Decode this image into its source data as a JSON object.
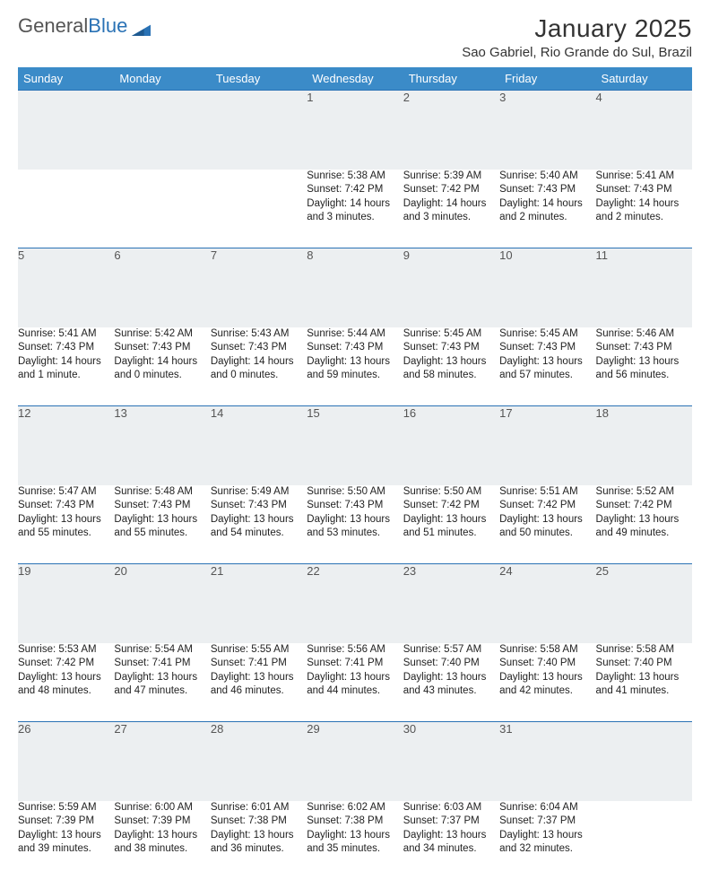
{
  "brand": {
    "part1": "General",
    "part2": "Blue"
  },
  "title": "January 2025",
  "location": "Sao Gabriel, Rio Grande do Sul, Brazil",
  "day_headers": [
    "Sunday",
    "Monday",
    "Tuesday",
    "Wednesday",
    "Thursday",
    "Friday",
    "Saturday"
  ],
  "colors": {
    "header_bg": "#3b8bc8",
    "header_text": "#ffffff",
    "daynum_bg": "#eceff1",
    "row_border": "#2a72b5",
    "logo_blue": "#2a72b5"
  },
  "weeks": [
    [
      {
        "n": "",
        "sr": "",
        "ss": "",
        "dl": ""
      },
      {
        "n": "",
        "sr": "",
        "ss": "",
        "dl": ""
      },
      {
        "n": "",
        "sr": "",
        "ss": "",
        "dl": ""
      },
      {
        "n": "1",
        "sr": "Sunrise: 5:38 AM",
        "ss": "Sunset: 7:42 PM",
        "dl": "Daylight: 14 hours and 3 minutes."
      },
      {
        "n": "2",
        "sr": "Sunrise: 5:39 AM",
        "ss": "Sunset: 7:42 PM",
        "dl": "Daylight: 14 hours and 3 minutes."
      },
      {
        "n": "3",
        "sr": "Sunrise: 5:40 AM",
        "ss": "Sunset: 7:43 PM",
        "dl": "Daylight: 14 hours and 2 minutes."
      },
      {
        "n": "4",
        "sr": "Sunrise: 5:41 AM",
        "ss": "Sunset: 7:43 PM",
        "dl": "Daylight: 14 hours and 2 minutes."
      }
    ],
    [
      {
        "n": "5",
        "sr": "Sunrise: 5:41 AM",
        "ss": "Sunset: 7:43 PM",
        "dl": "Daylight: 14 hours and 1 minute."
      },
      {
        "n": "6",
        "sr": "Sunrise: 5:42 AM",
        "ss": "Sunset: 7:43 PM",
        "dl": "Daylight: 14 hours and 0 minutes."
      },
      {
        "n": "7",
        "sr": "Sunrise: 5:43 AM",
        "ss": "Sunset: 7:43 PM",
        "dl": "Daylight: 14 hours and 0 minutes."
      },
      {
        "n": "8",
        "sr": "Sunrise: 5:44 AM",
        "ss": "Sunset: 7:43 PM",
        "dl": "Daylight: 13 hours and 59 minutes."
      },
      {
        "n": "9",
        "sr": "Sunrise: 5:45 AM",
        "ss": "Sunset: 7:43 PM",
        "dl": "Daylight: 13 hours and 58 minutes."
      },
      {
        "n": "10",
        "sr": "Sunrise: 5:45 AM",
        "ss": "Sunset: 7:43 PM",
        "dl": "Daylight: 13 hours and 57 minutes."
      },
      {
        "n": "11",
        "sr": "Sunrise: 5:46 AM",
        "ss": "Sunset: 7:43 PM",
        "dl": "Daylight: 13 hours and 56 minutes."
      }
    ],
    [
      {
        "n": "12",
        "sr": "Sunrise: 5:47 AM",
        "ss": "Sunset: 7:43 PM",
        "dl": "Daylight: 13 hours and 55 minutes."
      },
      {
        "n": "13",
        "sr": "Sunrise: 5:48 AM",
        "ss": "Sunset: 7:43 PM",
        "dl": "Daylight: 13 hours and 55 minutes."
      },
      {
        "n": "14",
        "sr": "Sunrise: 5:49 AM",
        "ss": "Sunset: 7:43 PM",
        "dl": "Daylight: 13 hours and 54 minutes."
      },
      {
        "n": "15",
        "sr": "Sunrise: 5:50 AM",
        "ss": "Sunset: 7:43 PM",
        "dl": "Daylight: 13 hours and 53 minutes."
      },
      {
        "n": "16",
        "sr": "Sunrise: 5:50 AM",
        "ss": "Sunset: 7:42 PM",
        "dl": "Daylight: 13 hours and 51 minutes."
      },
      {
        "n": "17",
        "sr": "Sunrise: 5:51 AM",
        "ss": "Sunset: 7:42 PM",
        "dl": "Daylight: 13 hours and 50 minutes."
      },
      {
        "n": "18",
        "sr": "Sunrise: 5:52 AM",
        "ss": "Sunset: 7:42 PM",
        "dl": "Daylight: 13 hours and 49 minutes."
      }
    ],
    [
      {
        "n": "19",
        "sr": "Sunrise: 5:53 AM",
        "ss": "Sunset: 7:42 PM",
        "dl": "Daylight: 13 hours and 48 minutes."
      },
      {
        "n": "20",
        "sr": "Sunrise: 5:54 AM",
        "ss": "Sunset: 7:41 PM",
        "dl": "Daylight: 13 hours and 47 minutes."
      },
      {
        "n": "21",
        "sr": "Sunrise: 5:55 AM",
        "ss": "Sunset: 7:41 PM",
        "dl": "Daylight: 13 hours and 46 minutes."
      },
      {
        "n": "22",
        "sr": "Sunrise: 5:56 AM",
        "ss": "Sunset: 7:41 PM",
        "dl": "Daylight: 13 hours and 44 minutes."
      },
      {
        "n": "23",
        "sr": "Sunrise: 5:57 AM",
        "ss": "Sunset: 7:40 PM",
        "dl": "Daylight: 13 hours and 43 minutes."
      },
      {
        "n": "24",
        "sr": "Sunrise: 5:58 AM",
        "ss": "Sunset: 7:40 PM",
        "dl": "Daylight: 13 hours and 42 minutes."
      },
      {
        "n": "25",
        "sr": "Sunrise: 5:58 AM",
        "ss": "Sunset: 7:40 PM",
        "dl": "Daylight: 13 hours and 41 minutes."
      }
    ],
    [
      {
        "n": "26",
        "sr": "Sunrise: 5:59 AM",
        "ss": "Sunset: 7:39 PM",
        "dl": "Daylight: 13 hours and 39 minutes."
      },
      {
        "n": "27",
        "sr": "Sunrise: 6:00 AM",
        "ss": "Sunset: 7:39 PM",
        "dl": "Daylight: 13 hours and 38 minutes."
      },
      {
        "n": "28",
        "sr": "Sunrise: 6:01 AM",
        "ss": "Sunset: 7:38 PM",
        "dl": "Daylight: 13 hours and 36 minutes."
      },
      {
        "n": "29",
        "sr": "Sunrise: 6:02 AM",
        "ss": "Sunset: 7:38 PM",
        "dl": "Daylight: 13 hours and 35 minutes."
      },
      {
        "n": "30",
        "sr": "Sunrise: 6:03 AM",
        "ss": "Sunset: 7:37 PM",
        "dl": "Daylight: 13 hours and 34 minutes."
      },
      {
        "n": "31",
        "sr": "Sunrise: 6:04 AM",
        "ss": "Sunset: 7:37 PM",
        "dl": "Daylight: 13 hours and 32 minutes."
      },
      {
        "n": "",
        "sr": "",
        "ss": "",
        "dl": ""
      }
    ]
  ]
}
